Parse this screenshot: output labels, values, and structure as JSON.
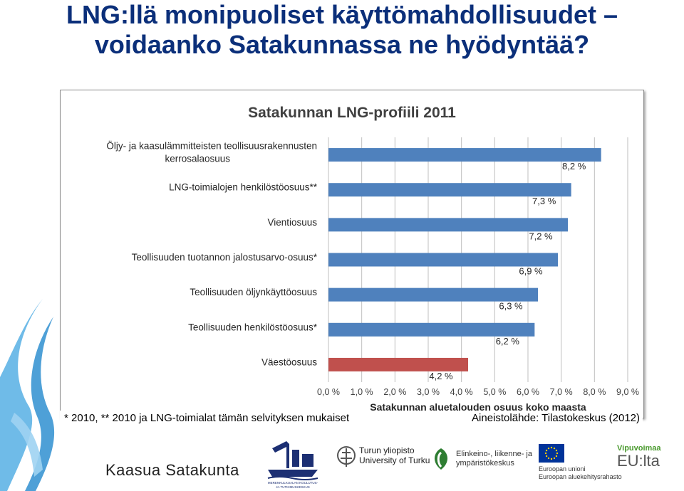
{
  "slide": {
    "title_line1": "LNG:llä monipuoliset käyttömahdollisuudet –",
    "title_line2": "voidaanko Satakunnassa ne hyödyntää?",
    "footnote": "* 2010, ** 2010 ja LNG-toimialat tämän selvityksen mukaiset",
    "source": "Aineistolähde: Tilastokeskus (2012)"
  },
  "chart_data": {
    "type": "bar",
    "orientation": "horizontal",
    "title": "Satakunnan LNG-profiili 2011",
    "xlabel": "Satakunnan aluetalouden osuus koko maasta",
    "categories": [
      [
        "Öljy- ja kaasulämmitteisten teollisuusrakennusten",
        "kerrosalaosuus"
      ],
      [
        "LNG-toimialojen henkilöstöosuus**"
      ],
      [
        "Vientiosuus"
      ],
      [
        "Teollisuuden tuotannon jalostusarvo-osuus*"
      ],
      [
        "Teollisuuden öljynkäyttöosuus"
      ],
      [
        "Teollisuuden henkilöstöosuus*"
      ],
      [
        "Väestöosuus"
      ]
    ],
    "values": [
      8.2,
      7.3,
      7.2,
      6.9,
      6.3,
      6.2,
      4.2
    ],
    "value_labels": [
      "8,2 %",
      "7,3 %",
      "7,2 %",
      "6,9 %",
      "6,3 %",
      "6,2 %",
      "4,2 %"
    ],
    "bar_colors": [
      "#4f81bd",
      "#4f81bd",
      "#4f81bd",
      "#4f81bd",
      "#4f81bd",
      "#4f81bd",
      "#c0504d"
    ],
    "xlim": [
      0,
      9
    ],
    "xticks": [
      0,
      1,
      2,
      3,
      4,
      5,
      6,
      7,
      8,
      9
    ],
    "xtick_labels": [
      "0,0 %",
      "1,0 %",
      "2,0 %",
      "3,0 %",
      "4,0 %",
      "5,0 %",
      "6,0 %",
      "7,0 %",
      "8,0 %",
      "9,0 %"
    ],
    "grid": "vertical",
    "legend": "none"
  },
  "logos": {
    "kaasua": "Kaasua Satakunta",
    "utu": [
      "Turun yliopisto",
      "University of Turku"
    ],
    "ely": [
      "Elinkeino-, liikenne- ja",
      "ympäristökeskus"
    ],
    "eu": [
      "Euroopan unioni",
      "Euroopan aluekehitysrahasto"
    ],
    "vipu": [
      "Vipuvoimaa",
      "EU:lta"
    ],
    "mkt": [
      "MERENKULKUALAN KOULUTUS-",
      "JA TUTKIMUSKESKUS"
    ]
  },
  "colors": {
    "title": "#0b2f7a",
    "bar_blue": "#4f81bd",
    "bar_red": "#c0504d",
    "grid": "#bfbfbf"
  }
}
